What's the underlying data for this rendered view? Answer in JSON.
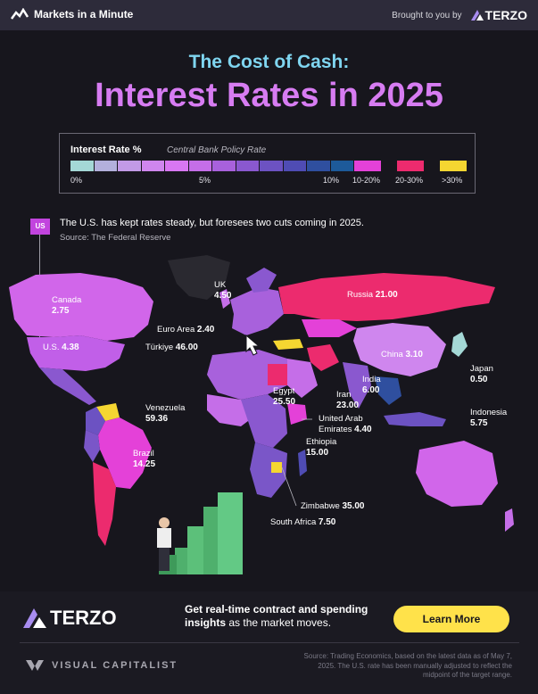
{
  "header": {
    "brand": "Markets in a Minute",
    "sponsor_text": "Brought to you by",
    "sponsor_name": "TERZO"
  },
  "title": {
    "line1": "The Cost of Cash:",
    "line2": "Interest Rates in 2025"
  },
  "legend": {
    "title": "Interest Rate %",
    "subtitle": "Central Bank Policy Rate",
    "tick_0": "0%",
    "tick_5": "5%",
    "tick_10": "10%",
    "bucket_10_20": "10-20%",
    "bucket_20_30": "20-30%",
    "bucket_30": ">30%",
    "colors": {
      "low": "#a4d8d6",
      "mid": "#b77fe3",
      "high_end": "#1d5a9a",
      "b10_20": "#e441d8",
      "b20_30": "#ec2b6e",
      "b30": "#f5d631"
    }
  },
  "note": {
    "tag": "US",
    "text": "The U.S. has kept rates steady, but foresees two cuts coming in 2025.",
    "source": "Source: The Federal Reserve"
  },
  "countries": {
    "canada": {
      "name": "Canada",
      "rate": "2.75"
    },
    "us": {
      "name": "U.S.",
      "rate": "4.38"
    },
    "uk": {
      "name": "UK",
      "rate": "4.50"
    },
    "euro": {
      "name": "Euro Area",
      "rate": "2.40"
    },
    "turkiye": {
      "name": "Türkiye",
      "rate": "46.00"
    },
    "russia": {
      "name": "Russia",
      "rate": "21.00"
    },
    "china": {
      "name": "China",
      "rate": "3.10"
    },
    "japan": {
      "name": "Japan",
      "rate": "0.50"
    },
    "india": {
      "name": "India",
      "rate": "6.00"
    },
    "iran": {
      "name": "Iran",
      "rate": "23.00"
    },
    "egypt": {
      "name": "Egypt",
      "rate": "25.50"
    },
    "uae": {
      "name_line1": "United Arab",
      "name_line2": "Emirates",
      "rate": "4.40"
    },
    "ethiopia": {
      "name": "Ethiopia",
      "rate": "15.00"
    },
    "indonesia": {
      "name": "Indonesia",
      "rate": "5.75"
    },
    "venezuela": {
      "name": "Venezuela",
      "rate": "59.36"
    },
    "brazil": {
      "name": "Brazil",
      "rate": "14.25"
    },
    "zimbabwe": {
      "name": "Zimbabwe",
      "rate": "35.00"
    },
    "south_africa": {
      "name": "South Africa",
      "rate": "7.50"
    }
  },
  "footer": {
    "brand": "TERZO",
    "cta_line1": "Get real-time contract and spending",
    "cta_line2_bold": "insights",
    "cta_line2_rest": " as the market moves.",
    "button": "Learn More",
    "publisher": "VISUAL CAPITALIST",
    "source_note": "Source: Trading Economics, based on the latest data as of May 7, 2025. The U.S. rate has been manually adjusted to reflect the midpoint of the target range."
  }
}
